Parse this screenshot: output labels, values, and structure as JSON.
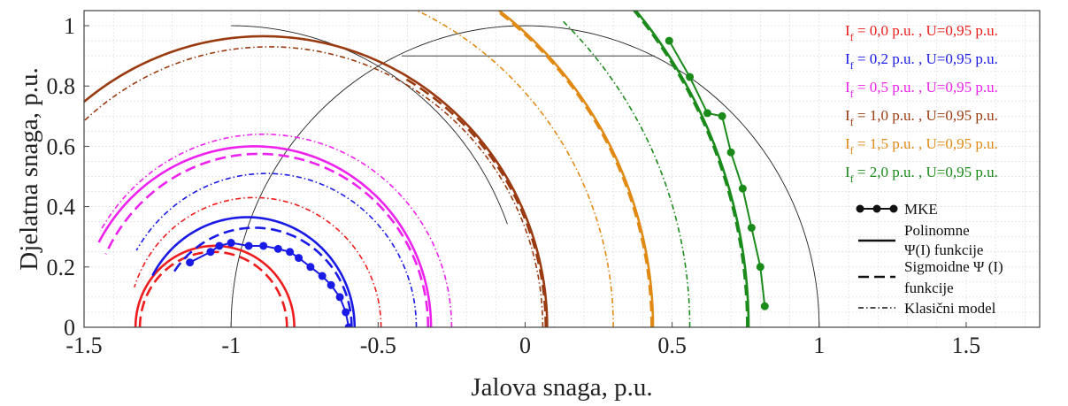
{
  "chart_data": {
    "type": "line",
    "title": "",
    "xlabel": "Jalova snaga, p.u.",
    "ylabel": "Djelatna snaga, p.u.",
    "xlim": [
      -1.5,
      1.75
    ],
    "ylim": [
      0,
      1.05
    ],
    "xticks": [
      -1.5,
      -1,
      -0.5,
      0,
      0.5,
      1,
      1.5
    ],
    "xtick_labels": [
      "-1.5",
      "-1",
      "-0.5",
      "0",
      "0.5",
      "1",
      "1.5"
    ],
    "yticks": [
      0,
      0.2,
      0.4,
      0.6,
      0.8,
      1
    ],
    "ytick_labels": [
      "0",
      "0.2",
      "0.4",
      "0.6",
      "0.8",
      "1"
    ],
    "grid": true,
    "legend_position": "right",
    "capability": {
      "circle_center": [
        0,
        0
      ],
      "circle_radius": 1,
      "cut_p": 0.9,
      "cut_q": [
        -0.42,
        0.44
      ],
      "excitation_arc_center": [
        -1.0,
        0
      ],
      "excitation_arc_radius": 1.0,
      "color": "#222222"
    },
    "series": [
      {
        "name": "I",
        "sub": "f",
        "suffix": " = 0,0 p.u. , U=0,95 p.u.",
        "color": "#ee1c1c",
        "poly": {
          "center": -1.055,
          "radius": 0.27,
          "start_deg": 0,
          "end_deg": 180
        },
        "sig": {
          "center": -1.06,
          "radius": 0.25,
          "start_deg": 0,
          "end_deg": 180
        },
        "classic": {
          "center": -0.92,
          "radius": 0.43,
          "start_deg": 0,
          "end_deg": 162
        }
      },
      {
        "name": "I",
        "sub": "f",
        "suffix": " = 0,2 p.u. , U=0,95 p.u.",
        "color": "#1a1ae6",
        "poly": {
          "center": -0.945,
          "radius": 0.365,
          "start_deg": 0,
          "end_deg": 152
        },
        "sig": {
          "center": -0.92,
          "radius": 0.33,
          "start_deg": 0,
          "end_deg": 148
        },
        "classic": {
          "center": -0.88,
          "radius": 0.51,
          "start_deg": 0,
          "end_deg": 150
        },
        "mke": {
          "q": [
            -0.6,
            -0.61,
            -0.63,
            -0.66,
            -0.69,
            -0.73,
            -0.77,
            -0.8,
            -0.84,
            -0.89,
            -0.94,
            -1.0,
            -1.04,
            -1.07,
            -1.14
          ],
          "p": [
            0.0,
            0.05,
            0.1,
            0.14,
            0.17,
            0.2,
            0.23,
            0.25,
            0.26,
            0.27,
            0.27,
            0.28,
            0.27,
            0.25,
            0.215
          ]
        }
      },
      {
        "name": "I",
        "sub": "f",
        "suffix": " = 0,5 p.u. , U=0,95 p.u.",
        "color": "#ee22ee",
        "poly": {
          "center": -0.92,
          "radius": 0.6,
          "start_deg": 0,
          "end_deg": 152
        },
        "sig": {
          "center": -0.905,
          "radius": 0.575,
          "start_deg": 0,
          "end_deg": 155
        },
        "classic": {
          "center": -0.89,
          "radius": 0.64,
          "start_deg": 0,
          "end_deg": 150
        }
      },
      {
        "name": "I",
        "sub": "f",
        "suffix": " = 1,0 p.u. , U=0,95 p.u.",
        "color": "#9a3a10",
        "poly": {
          "center": -0.89,
          "radius": 0.965,
          "start_deg": 0,
          "end_deg": 135
        },
        "sig": {
          "center": -0.88,
          "radius": 0.95,
          "start_deg": 0,
          "end_deg": 60
        },
        "classic": {
          "center": -0.87,
          "radius": 0.93,
          "start_deg": 0,
          "end_deg": 135
        }
      },
      {
        "name": "I",
        "sub": "f",
        "suffix": " = 1,5 p.u. , U=0,95 p.u.",
        "color": "#e08a14",
        "poly": {
          "center": -0.88,
          "radius": 1.315,
          "start_deg": 0,
          "end_deg": 54
        },
        "sig": {
          "center": -0.88,
          "radius": 1.31,
          "start_deg": 0,
          "end_deg": 54
        },
        "classic": {
          "center": -0.86,
          "radius": 1.16,
          "start_deg": 0,
          "end_deg": 70
        }
      },
      {
        "name": "I",
        "sub": "f",
        "suffix": " = 2,0 p.u. , U=0,95 p.u.",
        "color": "#1a8a1a",
        "poly": {
          "center": -0.87,
          "radius": 1.63,
          "start_deg": 0,
          "end_deg": 41
        },
        "sig": {
          "center": -0.87,
          "radius": 1.625,
          "start_deg": 0,
          "end_deg": 41
        },
        "classic": {
          "center": -0.85,
          "radius": 1.41,
          "start_deg": 0,
          "end_deg": 46
        },
        "mke": {
          "q": [
            0.815,
            0.8,
            0.77,
            0.74,
            0.7,
            0.67,
            0.62,
            0.56,
            0.49
          ],
          "p": [
            0.07,
            0.2,
            0.33,
            0.46,
            0.58,
            0.7,
            0.71,
            0.83,
            0.95
          ]
        }
      }
    ],
    "key": {
      "mke": "MKE",
      "poly_line1": "Polinomne",
      "poly_line2": "Ψ(I) funkcije",
      "sig_line1": "Sigmoidne Ψ (I)",
      "sig_line2": "funkcije",
      "classic": "Klasični model"
    }
  }
}
